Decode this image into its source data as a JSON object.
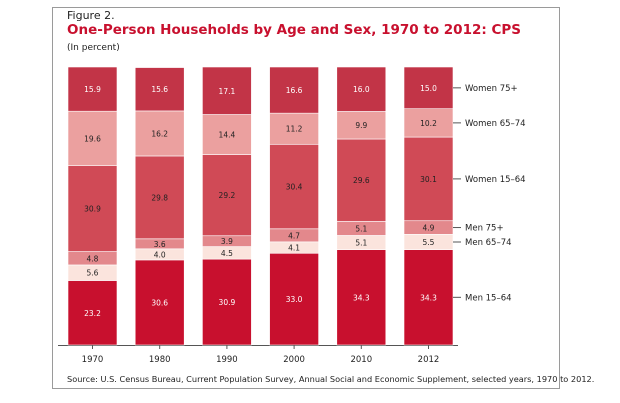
{
  "figure_label": "Figure 2.",
  "chart_data": {
    "type": "bar",
    "stacked": true,
    "title": "One-Person Households by Age and Sex, 1970 to 2012: CPS",
    "subtitle": "(In percent)",
    "source": "Source: U.S. Census Bureau, Current Population Survey, Annual Social and Economic Supplement, selected years, 1970 to 2012.",
    "categories": [
      "1970",
      "1980",
      "1990",
      "2000",
      "2010",
      "2012"
    ],
    "ylim": [
      0,
      100
    ],
    "series": [
      {
        "name": "Men 15–64",
        "color": "#c8102e",
        "label_color": "#ffffff",
        "values": [
          23.2,
          30.6,
          30.9,
          33.0,
          34.3,
          34.3
        ]
      },
      {
        "name": "Men 65–74",
        "color": "#fbe4dd",
        "label_color": "#222222",
        "values": [
          5.6,
          4.0,
          4.5,
          4.1,
          5.1,
          5.5
        ]
      },
      {
        "name": "Men 75+",
        "color": "#e3888c",
        "label_color": "#222222",
        "values": [
          4.8,
          3.6,
          3.9,
          4.7,
          5.1,
          4.9
        ]
      },
      {
        "name": "Women 15–64",
        "color": "#d04a56",
        "label_color": "#222222",
        "values": [
          30.9,
          29.8,
          29.2,
          30.4,
          29.6,
          30.1
        ]
      },
      {
        "name": "Women 65–74",
        "color": "#eba09f",
        "label_color": "#222222",
        "values": [
          19.6,
          16.2,
          14.4,
          11.2,
          9.9,
          10.2
        ]
      },
      {
        "name": "Women 75+",
        "color": "#c23447",
        "label_color": "#ffffff",
        "values": [
          15.9,
          15.6,
          17.1,
          16.6,
          16.0,
          15.0
        ]
      }
    ]
  }
}
